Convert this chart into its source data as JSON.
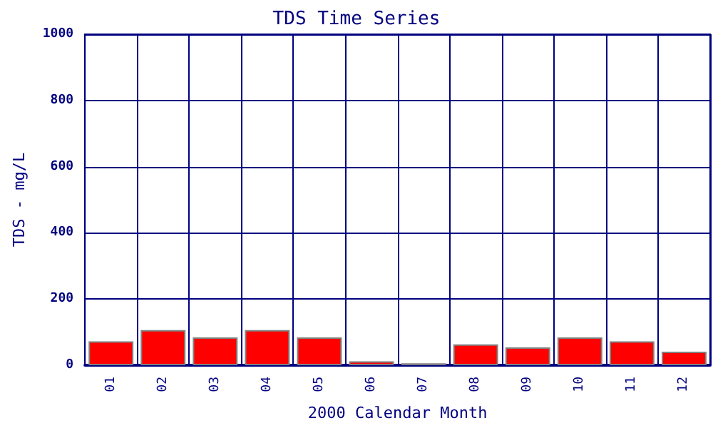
{
  "chart_data": {
    "type": "bar",
    "title": "TDS Time Series",
    "xlabel": "2000 Calendar Month",
    "ylabel": "TDS - mg/L",
    "categories": [
      "01",
      "02",
      "03",
      "04",
      "05",
      "06",
      "07",
      "08",
      "09",
      "10",
      "11",
      "12"
    ],
    "values": [
      72,
      106,
      84,
      106,
      84,
      12,
      6,
      63,
      54,
      84,
      72,
      41
    ],
    "color": "#ff0000",
    "ylim": [
      0,
      1000
    ],
    "yticks": [
      0,
      200,
      400,
      600,
      800,
      1000
    ],
    "grid": true
  }
}
